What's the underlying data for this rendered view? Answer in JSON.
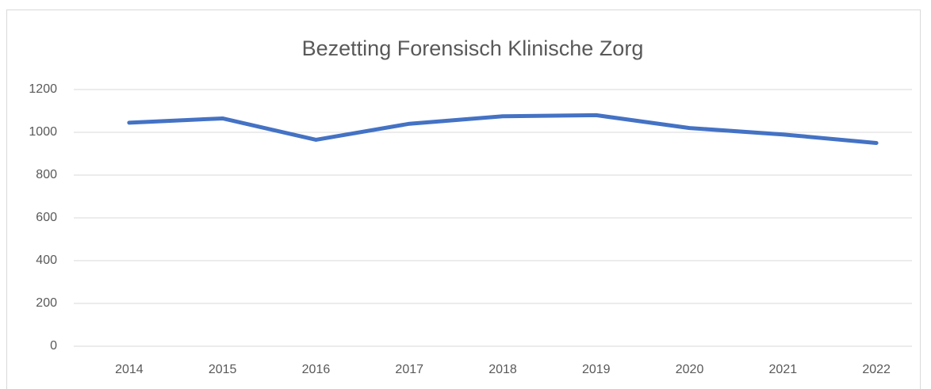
{
  "chart_data": {
    "type": "line",
    "title": "Bezetting Forensisch Klinische Zorg",
    "categories": [
      "2014",
      "2015",
      "2016",
      "2017",
      "2018",
      "2019",
      "2020",
      "2021",
      "2022"
    ],
    "values": [
      1045,
      1065,
      965,
      1040,
      1075,
      1080,
      1020,
      990,
      950
    ],
    "color": "#4472c4",
    "ylim": [
      0,
      1200
    ],
    "yticks": [
      0,
      200,
      400,
      600,
      800,
      1000,
      1200
    ],
    "grid": true
  }
}
